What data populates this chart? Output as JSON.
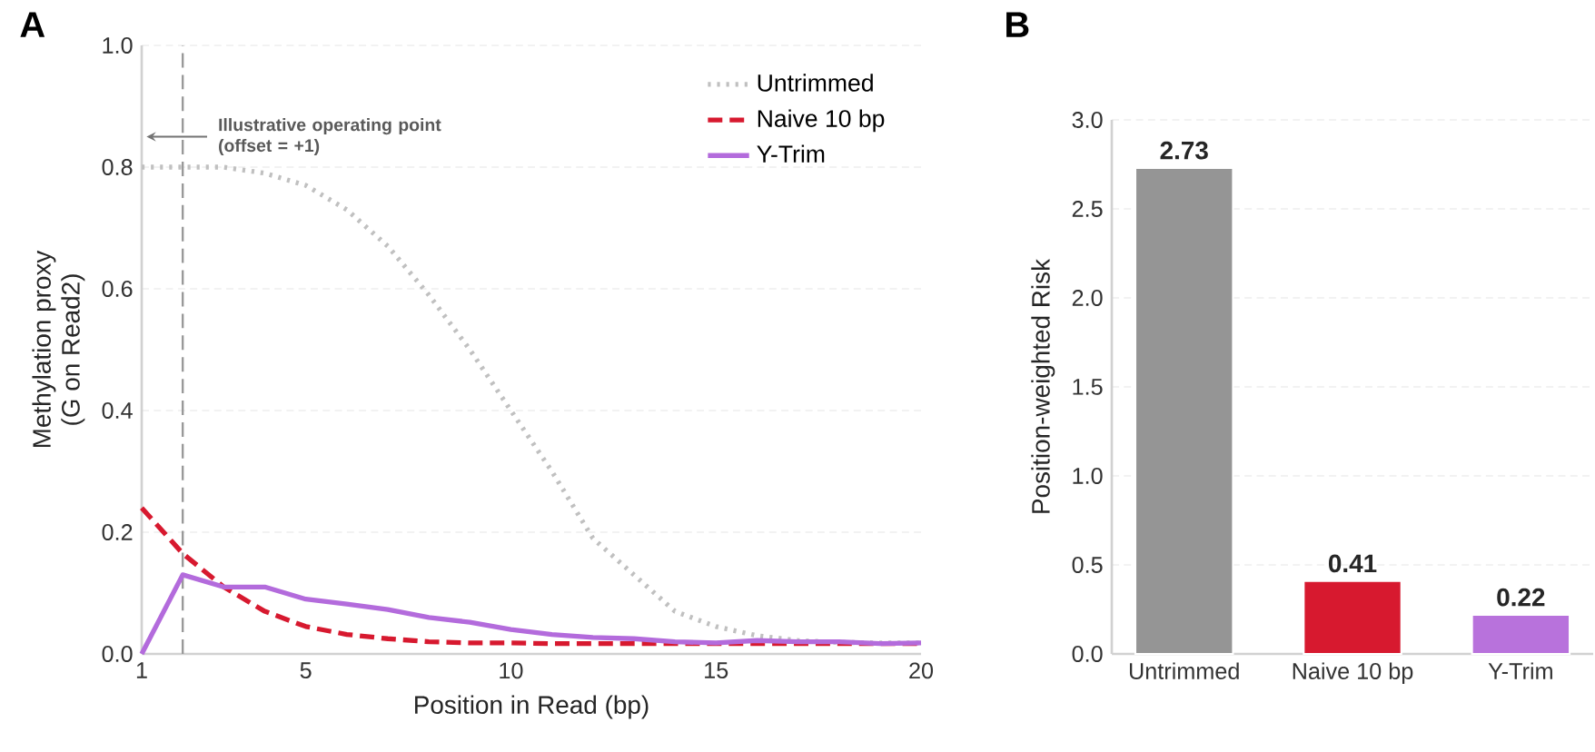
{
  "chart_data": [
    {
      "type": "line",
      "title": "A",
      "xlabel": "Position in Read (bp)",
      "ylabel": "Methylation proxy\n(G on Read2)",
      "x": [
        1,
        2,
        3,
        4,
        5,
        6,
        7,
        8,
        9,
        10,
        11,
        12,
        13,
        14,
        15,
        16,
        17,
        18,
        19,
        20
      ],
      "series": [
        {
          "name": "Untrimmed",
          "color": "#c0c0c0",
          "line_style": "dotted",
          "values": [
            0.8,
            0.8,
            0.8,
            0.79,
            0.77,
            0.73,
            0.67,
            0.59,
            0.5,
            0.4,
            0.3,
            0.19,
            0.13,
            0.07,
            0.045,
            0.03,
            0.022,
            0.019,
            0.018,
            0.018
          ]
        },
        {
          "name": "Naive 10 bp",
          "color": "#d7192f",
          "line_style": "dashed",
          "values": [
            0.24,
            0.165,
            0.11,
            0.07,
            0.045,
            0.032,
            0.025,
            0.02,
            0.018,
            0.018,
            0.017,
            0.017,
            0.017,
            0.017,
            0.017,
            0.017,
            0.017,
            0.017,
            0.017,
            0.017
          ]
        },
        {
          "name": "Y-Trim",
          "color": "#b36bdc",
          "line_style": "solid",
          "values": [
            0.0,
            0.13,
            0.11,
            0.11,
            0.09,
            0.082,
            0.073,
            0.06,
            0.052,
            0.04,
            0.032,
            0.027,
            0.025,
            0.02,
            0.018,
            0.022,
            0.02,
            0.02,
            0.017,
            0.018
          ]
        }
      ],
      "xlim": [
        1,
        20
      ],
      "xticks": [
        1,
        5,
        10,
        15,
        20
      ],
      "ylim": [
        0,
        1
      ],
      "yticks": [
        {
          "value": 0,
          "label": "0.0"
        },
        {
          "value": 0.2,
          "label": "0.2"
        },
        {
          "value": 0.4,
          "label": "0.4"
        },
        {
          "value": 0.6,
          "label": "0.6"
        },
        {
          "value": 0.8,
          "label": "0.8"
        },
        {
          "value": 1,
          "label": "1.0"
        }
      ],
      "ref_lines": [
        {
          "axis": "x",
          "value": 2,
          "color": "#999999",
          "line_style": "dashed"
        }
      ],
      "annotations": [
        {
          "text": "Illustrative operating point (offset = +1)",
          "x": 2,
          "y": 0.85
        }
      ],
      "grid": "y",
      "legend": "top right"
    },
    {
      "type": "bar",
      "title": "B",
      "ylabel": "Position-weighted Risk",
      "categories": [
        "Untrimmed",
        "Naive 10 bp",
        "Y-Trim"
      ],
      "values": [
        2.73,
        0.41,
        0.22
      ],
      "colors": [
        "#959595",
        "#d7192f",
        "#b872dc"
      ],
      "ylim": [
        0,
        3.0
      ],
      "yticks": [
        {
          "value": 0,
          "label": "0.0"
        },
        {
          "value": 0.5,
          "label": "0.5"
        },
        {
          "value": 1,
          "label": "1.0"
        },
        {
          "value": 1.5,
          "label": "1.5"
        },
        {
          "value": 2,
          "label": "2.0"
        },
        {
          "value": 2.5,
          "label": "2.5"
        },
        {
          "value": 3,
          "label": "3.0"
        }
      ],
      "data_labels": true,
      "grid": "y"
    }
  ]
}
